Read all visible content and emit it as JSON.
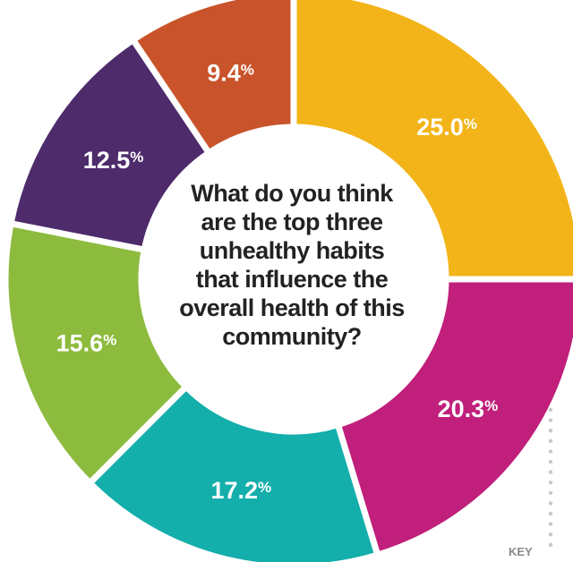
{
  "chart_data": {
    "type": "pie",
    "title": "What do you think are the top three unhealthy habits that influence the overall health of this community?",
    "slices": [
      {
        "label": "25.0",
        "value": 25.0,
        "color": "#F2B418"
      },
      {
        "label": "20.3",
        "value": 20.3,
        "color": "#C01F7B"
      },
      {
        "label": "17.2",
        "value": 17.2,
        "color": "#14AEAB"
      },
      {
        "label": "15.6",
        "value": 15.6,
        "color": "#8DBB3E"
      },
      {
        "label": "12.5",
        "value": 12.5,
        "color": "#4E2B6B"
      },
      {
        "label": "9.4",
        "value": 9.4,
        "color": "#C9532A"
      }
    ],
    "unit_symbol": "%",
    "key_label": "KEY"
  }
}
